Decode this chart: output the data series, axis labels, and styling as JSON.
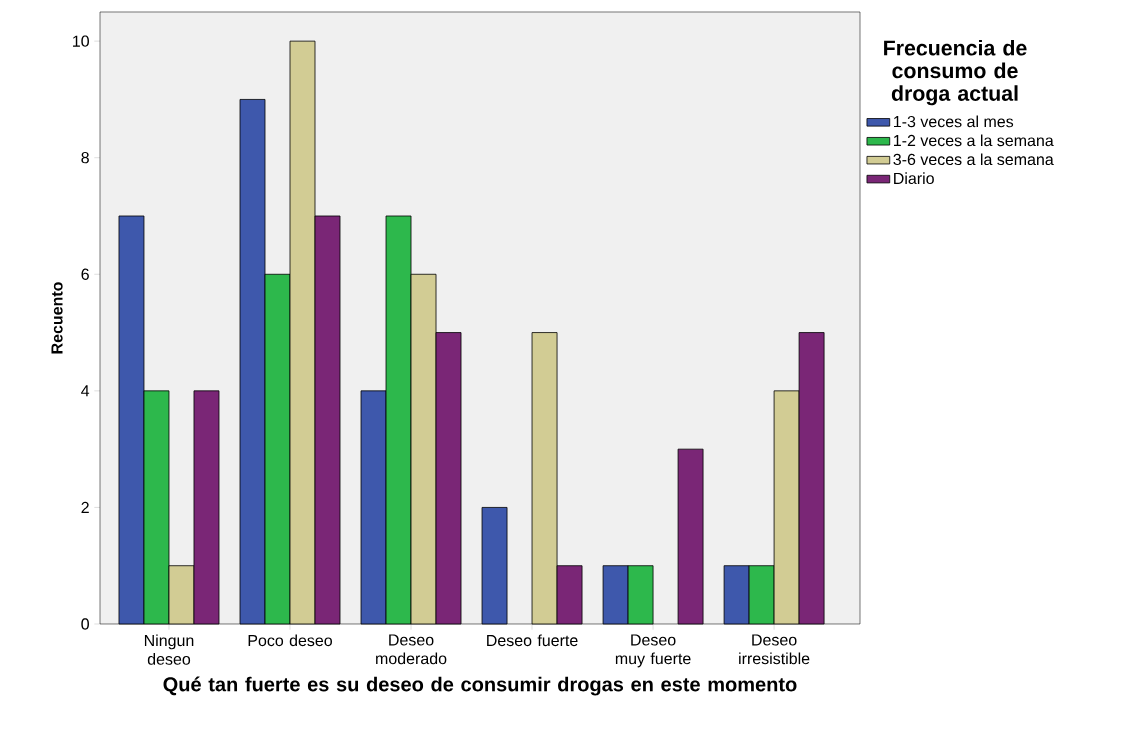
{
  "chart_data": {
    "type": "bar",
    "categories": [
      "Ningun deseo",
      "Poco deseo",
      "Deseo moderado",
      "Deseo fuerte",
      "Deseo muy fuerte",
      "Deseo irresistible"
    ],
    "series": [
      {
        "name": "1-3 veces al mes",
        "color": "#3e58ac",
        "values": [
          7,
          9,
          4,
          2,
          1,
          1
        ]
      },
      {
        "name": "1-2 veces a la semana",
        "color": "#2db84c",
        "values": [
          4,
          6,
          7,
          null,
          1,
          1
        ]
      },
      {
        "name": "3-6 veces a la semana",
        "color": "#d2cc94",
        "values": [
          1,
          10,
          6,
          5,
          null,
          4
        ]
      },
      {
        "name": "Diario",
        "color": "#7a2676",
        "values": [
          4,
          7,
          5,
          1,
          3,
          5
        ]
      }
    ],
    "xlabel": "Qué tan fuerte es su deseo de consumir drogas en este momento",
    "ylabel": "Recuento",
    "legend_title": "Frecuencia de consumo de droga actual",
    "legend": "right",
    "ylim": [
      0,
      10.5
    ],
    "yticks": [
      0,
      2,
      4,
      6,
      8,
      10
    ]
  }
}
